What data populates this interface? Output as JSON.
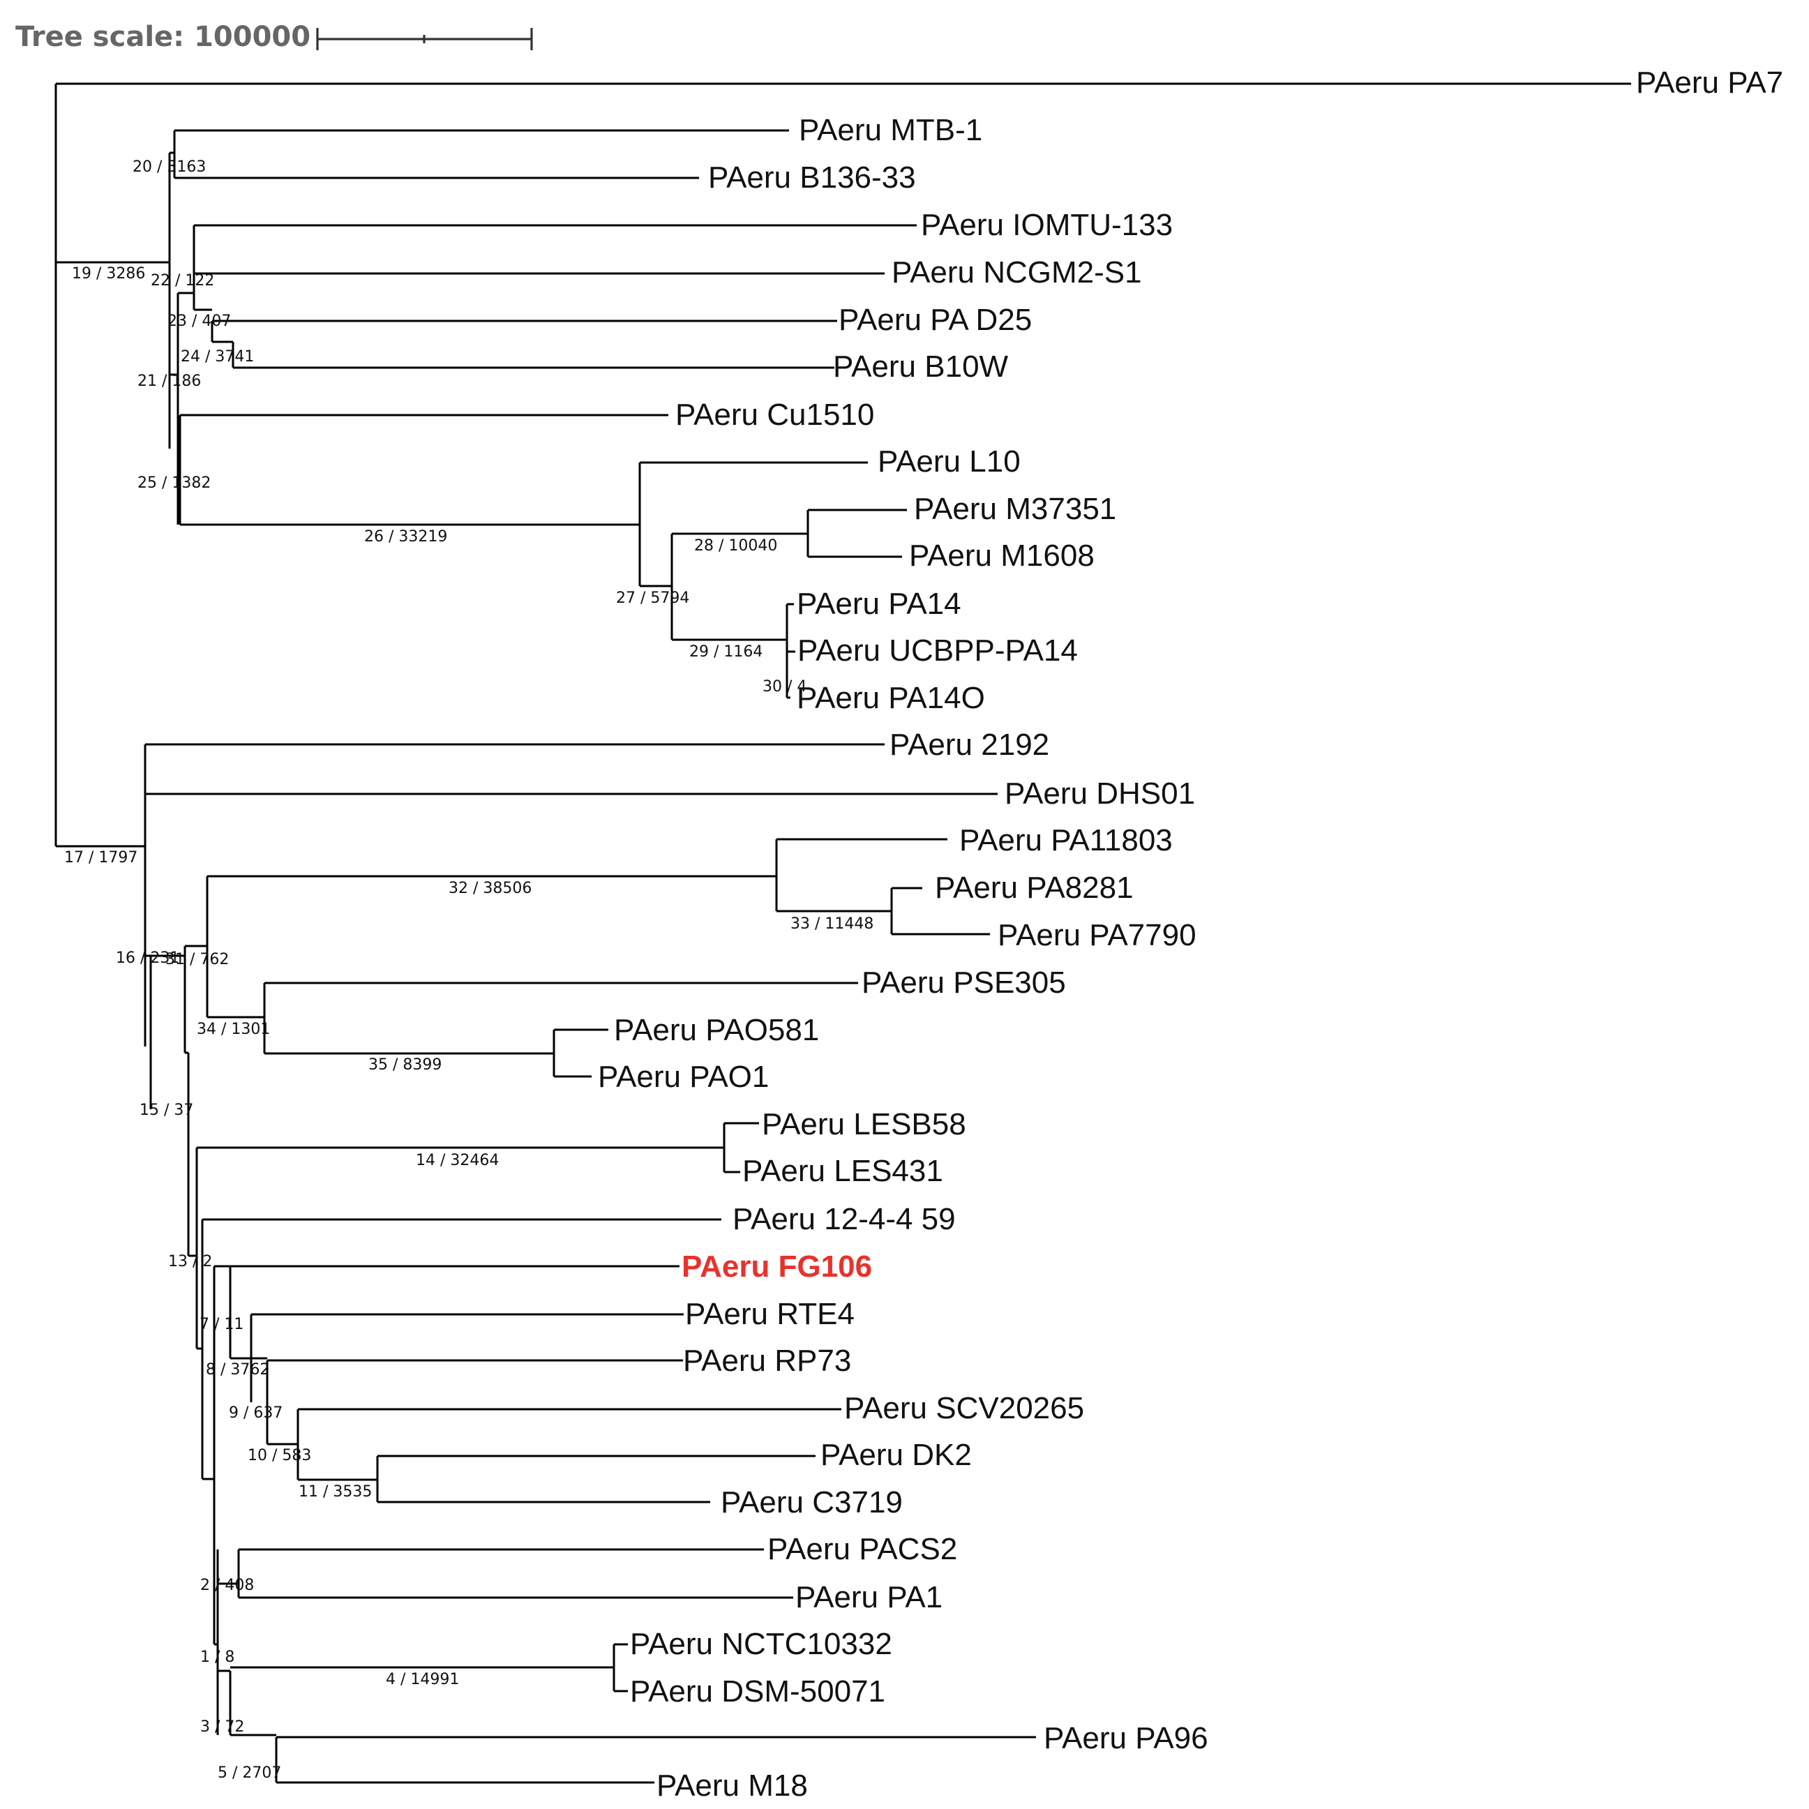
{
  "scale": {
    "label": "Tree scale: 100000"
  },
  "colors": {
    "branch": "#000000",
    "label": "#111111",
    "highlight": "#e8322c",
    "scale_text": "#666666"
  },
  "leaves": [
    "PAeru PA7",
    "PAeru MTB-1",
    "PAeru B136-33",
    "PAeru IOMTU-133",
    "PAeru NCGM2-S1",
    "PAeru PA D25",
    "PAeru B10W",
    "PAeru Cu1510",
    "PAeru L10",
    "PAeru M37351",
    "PAeru M1608",
    "PAeru PA14",
    "PAeru UCBPP-PA14",
    "PAeru PA14O",
    "PAeru 2192",
    "PAeru DHS01",
    "PAeru PA11803",
    "PAeru PA8281",
    "PAeru PA7790",
    "PAeru PSE305",
    "PAeru PAO581",
    "PAeru PAO1",
    "PAeru LESB58",
    "PAeru LES431",
    "PAeru 12-4-4 59",
    "PAeru FG106",
    "PAeru RTE4",
    "PAeru RP73",
    "PAeru SCV20265",
    "PAeru DK2",
    "PAeru C3719",
    "PAeru PACS2",
    "PAeru PA1",
    "PAeru NCTC10332",
    "PAeru DSM-50071",
    "PAeru PA96",
    "PAeru M18"
  ],
  "highlighted_leaf": "PAeru FG106",
  "branch_labels": [
    "20 / 3163",
    "19 / 3286",
    "22 / 122",
    "23 / 407",
    "24 / 3741",
    "21 / 186",
    "25 / 1382",
    "26 / 33219",
    "28 / 10040",
    "27 / 5794",
    "29 / 1164",
    "30 / 4",
    "17 / 1797",
    "32 / 38506",
    "33 / 11448",
    "16 / 231",
    "31 / 762",
    "34 / 1301",
    "35 / 8399",
    "15 / 37",
    "14 / 32464",
    "13 / 2",
    "7 / 11",
    "8 / 3762",
    "9 / 637",
    "10 / 583",
    "11 / 3535",
    "2 / 408",
    "1 / 8",
    "4 / 14991",
    "3 / 72",
    "5 / 2707"
  ]
}
